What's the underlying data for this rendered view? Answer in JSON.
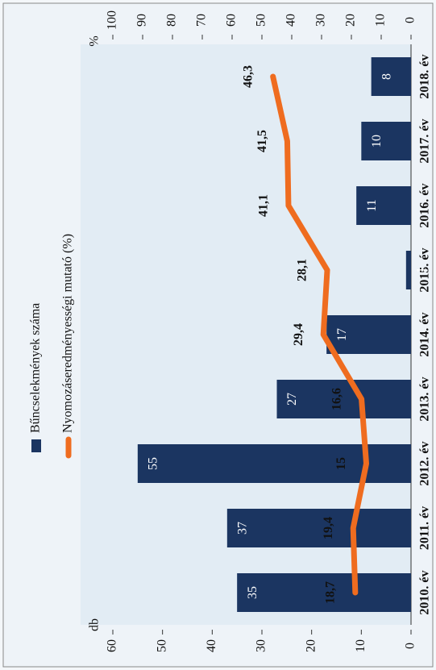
{
  "chart_data": {
    "type": "bar_line",
    "categories": [
      "2010. év",
      "2011. év",
      "2012. év",
      "2013. év",
      "2014. év",
      "2015. év",
      "2016. év",
      "2017. év",
      "2018. év"
    ],
    "series": [
      {
        "name": "Bűncselekmények száma",
        "type": "bar",
        "color": "#1b3561",
        "values": [
          35,
          37,
          55,
          27,
          17,
          1,
          11,
          10,
          8
        ]
      },
      {
        "name": "Nyomozáseredményességi mutató (%)",
        "type": "line",
        "axis": "y2",
        "color": "#ef6c1f",
        "values": [
          18.7,
          19.4,
          15,
          16.6,
          29.4,
          28.1,
          41.1,
          41.5,
          46.3
        ],
        "value_labels": [
          "18,7",
          "19,4",
          "15",
          "16,6",
          "29,4",
          "28,1",
          "41,1",
          "41,5",
          "46,3"
        ]
      }
    ],
    "ylabel": "db",
    "y2label": "%",
    "ylim": [
      0,
      60
    ],
    "yticks": [
      0,
      10,
      20,
      30,
      40,
      50,
      60
    ],
    "y2lim": [
      0,
      100
    ],
    "y2ticks": [
      0,
      10,
      20,
      30,
      40,
      50,
      60,
      70,
      80,
      90,
      100
    ]
  }
}
